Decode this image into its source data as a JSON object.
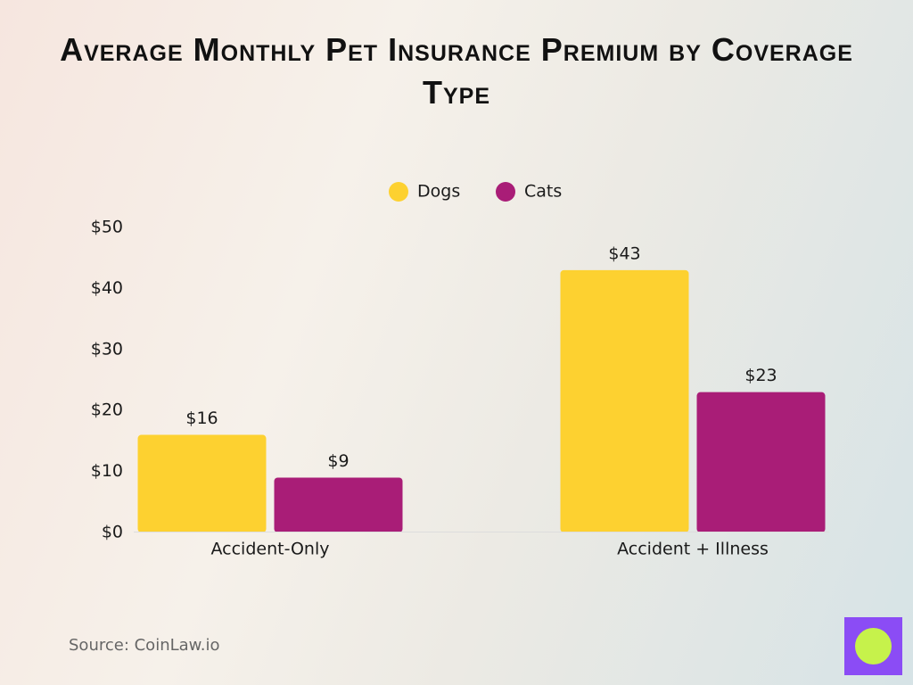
{
  "chart_data": {
    "type": "bar",
    "title": "Average Monthly Pet Insurance Premium by Coverage Type",
    "categories": [
      "Accident-Only",
      "Accident + Illness"
    ],
    "series": [
      {
        "name": "Dogs",
        "color": "#fdd130",
        "values": [
          16,
          43
        ],
        "value_labels": [
          "$16",
          "$43"
        ]
      },
      {
        "name": "Cats",
        "color": "#a91d77",
        "values": [
          9,
          23
        ],
        "value_labels": [
          "$9",
          "$23"
        ]
      }
    ],
    "ylim": [
      0,
      50
    ],
    "yticks": [
      {
        "value": 0,
        "label": "$0"
      },
      {
        "value": 10,
        "label": "$10"
      },
      {
        "value": 20,
        "label": "$20"
      },
      {
        "value": 30,
        "label": "$30"
      },
      {
        "value": 40,
        "label": "$40"
      },
      {
        "value": 50,
        "label": "$50"
      }
    ],
    "grid": false,
    "legend": "top",
    "source": "Source: CoinLaw.io"
  }
}
